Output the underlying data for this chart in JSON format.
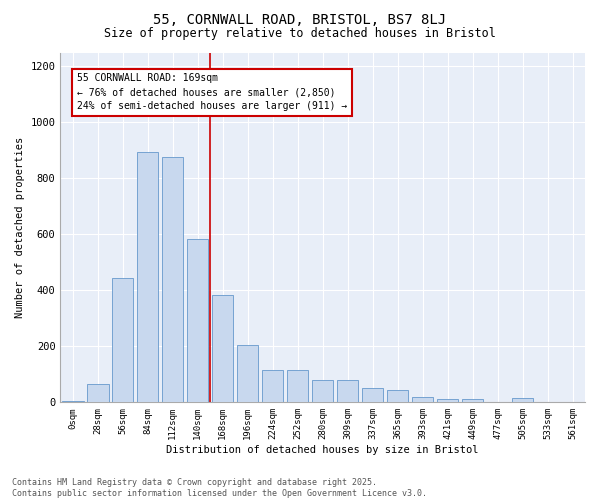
{
  "title1": "55, CORNWALL ROAD, BRISTOL, BS7 8LJ",
  "title2": "Size of property relative to detached houses in Bristol",
  "xlabel": "Distribution of detached houses by size in Bristol",
  "ylabel": "Number of detached properties",
  "bar_labels": [
    "0sqm",
    "28sqm",
    "56sqm",
    "84sqm",
    "112sqm",
    "140sqm",
    "168sqm",
    "196sqm",
    "224sqm",
    "252sqm",
    "280sqm",
    "309sqm",
    "337sqm",
    "365sqm",
    "393sqm",
    "421sqm",
    "449sqm",
    "477sqm",
    "505sqm",
    "533sqm",
    "561sqm"
  ],
  "bar_values": [
    5,
    65,
    445,
    895,
    875,
    585,
    385,
    205,
    115,
    115,
    80,
    80,
    50,
    45,
    20,
    12,
    12,
    0,
    15,
    0,
    0
  ],
  "bar_color": "#c8d8ee",
  "bar_edge_color": "#6699cc",
  "bg_color": "#e8eef8",
  "vline_color": "#cc0000",
  "annotation_line1": "55 CORNWALL ROAD: 169sqm",
  "annotation_line2": "← 76% of detached houses are smaller (2,850)",
  "annotation_line3": "24% of semi-detached houses are larger (911) →",
  "annotation_box_color": "#cc0000",
  "ylim": [
    0,
    1250
  ],
  "yticks": [
    0,
    200,
    400,
    600,
    800,
    1000,
    1200
  ],
  "footer1": "Contains HM Land Registry data © Crown copyright and database right 2025.",
  "footer2": "Contains public sector information licensed under the Open Government Licence v3.0."
}
